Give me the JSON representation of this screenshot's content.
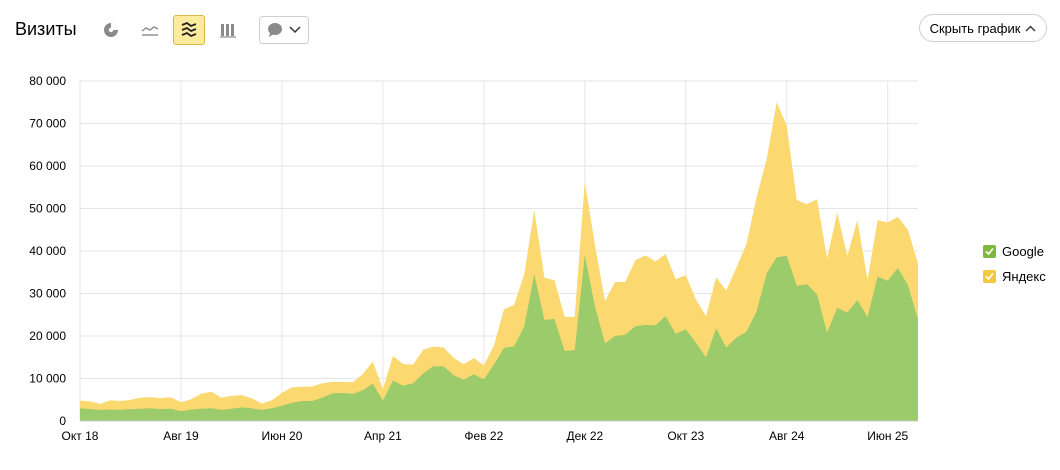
{
  "header": {
    "title": "Визиты",
    "hide_chart_label": "Скрыть график"
  },
  "colors": {
    "google": "#9ccb6b",
    "yandex": "#fcd870",
    "accent": "#ffeba0"
  },
  "icons": [
    "pie-chart-icon",
    "line-chart-icon",
    "stacked-area-icon",
    "bar-chart-icon",
    "comment-icon",
    "chevron-down-icon",
    "chevron-up-icon"
  ],
  "legend": [
    {
      "name": "Google",
      "color": "#7fb83e"
    },
    {
      "name": "Яндекс",
      "color": "#f5c842"
    }
  ],
  "chart_data": {
    "type": "area",
    "stacked": true,
    "y_ticks": [
      "0",
      "10 000",
      "20 000",
      "30 000",
      "40 000",
      "50 000",
      "60 000",
      "70 000",
      "80 000"
    ],
    "ylim": [
      0,
      80000
    ],
    "x_ticks": [
      {
        "label": "Окт 18",
        "index": 0
      },
      {
        "label": "Авг 19",
        "index": 10
      },
      {
        "label": "Июн 20",
        "index": 20
      },
      {
        "label": "Апр 21",
        "index": 30
      },
      {
        "label": "Фев 22",
        "index": 40
      },
      {
        "label": "Дек 22",
        "index": 50
      },
      {
        "label": "Окт 23",
        "index": 60
      },
      {
        "label": "Авг 24",
        "index": 70
      },
      {
        "label": "Июн 25",
        "index": 80
      }
    ],
    "grid": true,
    "series": [
      {
        "name": "Google",
        "values": [
          3000,
          2800,
          2600,
          2700,
          2600,
          2800,
          2900,
          3000,
          2800,
          2900,
          2300,
          2700,
          2900,
          3000,
          2600,
          2900,
          3200,
          3000,
          2600,
          3000,
          3600,
          4300,
          4700,
          4700,
          5500,
          6500,
          6600,
          6400,
          7200,
          8800,
          4800,
          9500,
          8300,
          8900,
          11200,
          12900,
          12900,
          10800,
          9700,
          11000,
          9800,
          13300,
          17200,
          17600,
          22200,
          34500,
          23800,
          24000,
          16500,
          16700,
          39000,
          27000,
          18300,
          20000,
          20300,
          22300,
          22600,
          22500,
          24700,
          20500,
          21600,
          18400,
          15000,
          21800,
          17300,
          19600,
          21000,
          25700,
          34700,
          38500,
          38900,
          31800,
          32200,
          29800,
          20800,
          26600,
          25500,
          28500,
          24500,
          34000,
          33000,
          36000,
          32000,
          24000
        ],
        "total": [
          4800,
          4600,
          4000,
          4900,
          4700,
          5000,
          5500,
          5600,
          5400,
          5600,
          4400,
          5100,
          6400,
          6900,
          5500,
          5900,
          6100,
          5400,
          4100,
          4900,
          6600,
          7900,
          8100,
          8100,
          8900,
          9200,
          9200,
          9100,
          11000,
          14000,
          7500,
          15300,
          13400,
          13300,
          16800,
          17500,
          17300,
          14900,
          13400,
          14800,
          13100,
          17800,
          26300,
          27300,
          34500,
          49600,
          33700,
          33100,
          24500,
          24500,
          56300,
          41500,
          28200,
          32700,
          32700,
          37800,
          39000,
          37500,
          39300,
          33400,
          34300,
          28600,
          24600,
          33800,
          30700,
          36000,
          41600,
          52600,
          61500,
          75000,
          69500,
          52000,
          51000,
          52200,
          38200,
          49000,
          38900,
          47300,
          33200,
          47200,
          46700,
          48000,
          45000,
          37000
        ]
      }
    ]
  }
}
